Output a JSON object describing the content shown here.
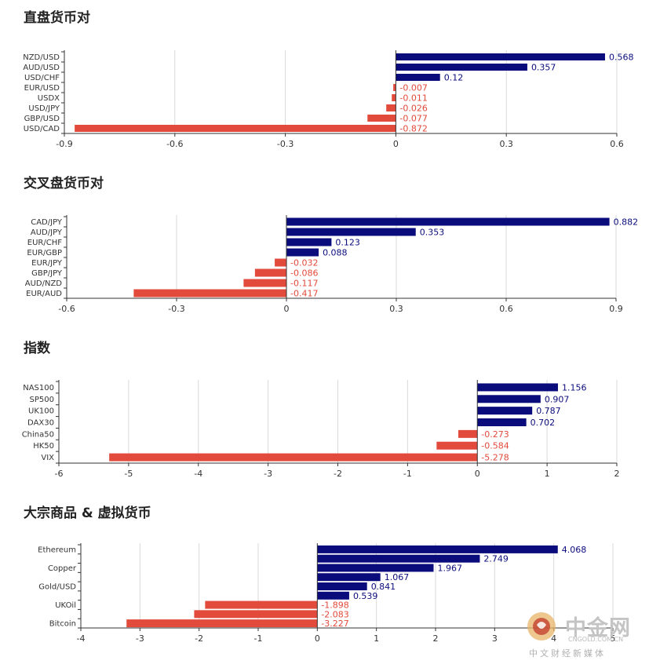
{
  "sections": [
    {
      "title": "直盘货币对"
    },
    {
      "title": "交叉盘货币对"
    },
    {
      "title": "指数"
    },
    {
      "title": "大宗商品 & 虚拟货币"
    }
  ],
  "colors": {
    "positive": "#0b0c7c",
    "negative": "#e24a3b",
    "grid": "#d9d9d9",
    "axis": "#333333"
  },
  "chart_data": [
    {
      "type": "bar",
      "orientation": "horizontal",
      "title": "直盘货币对",
      "categories": [
        "NZD/USD",
        "AUD/USD",
        "USD/CHF",
        "EUR/USD",
        "USDX",
        "USD/JPY",
        "GBP/USD",
        "USD/CAD"
      ],
      "values": [
        0.568,
        0.357,
        0.12,
        -0.007,
        -0.011,
        -0.026,
        -0.077,
        -0.872
      ],
      "value_labels": [
        "0.568",
        "0.357",
        "0.12",
        "-0.007",
        "-0.011",
        "-0.026",
        "-0.077",
        "-0.872"
      ],
      "xlim": [
        -0.9,
        0.6
      ],
      "xticks": [
        -0.9,
        -0.6,
        -0.3,
        0,
        0.3,
        0.6
      ],
      "xtick_labels": [
        "-0.9",
        "-0.6",
        "-0.3",
        "0",
        "0.3",
        "0.6"
      ],
      "grid": true
    },
    {
      "type": "bar",
      "orientation": "horizontal",
      "title": "交叉盘货币对",
      "categories": [
        "CAD/JPY",
        "AUD/JPY",
        "EUR/CHF",
        "EUR/GBP",
        "EUR/JPY",
        "GBP/JPY",
        "AUD/NZD",
        "EUR/AUD"
      ],
      "values": [
        0.882,
        0.353,
        0.123,
        0.088,
        -0.032,
        -0.086,
        -0.117,
        -0.417
      ],
      "value_labels": [
        "0.882",
        "0.353",
        "0.123",
        "0.088",
        "-0.032",
        "-0.086",
        "-0.117",
        "-0.417"
      ],
      "xlim": [
        -0.6,
        0.9
      ],
      "xticks": [
        -0.6,
        -0.3,
        0,
        0.3,
        0.6,
        0.9
      ],
      "xtick_labels": [
        "-0.6",
        "-0.3",
        "0",
        "0.3",
        "0.6",
        "0.9"
      ],
      "grid": true
    },
    {
      "type": "bar",
      "orientation": "horizontal",
      "title": "指数",
      "categories": [
        "NAS100",
        "SP500",
        "UK100",
        "DAX30",
        "China50",
        "HK50",
        "VIX"
      ],
      "values": [
        1.156,
        0.907,
        0.787,
        0.702,
        -0.273,
        -0.584,
        -5.278
      ],
      "value_labels": [
        "1.156",
        "0.907",
        "0.787",
        "0.702",
        "-0.273",
        "-0.584",
        "-5.278"
      ],
      "xlim": [
        -6,
        2
      ],
      "xticks": [
        -6,
        -5,
        -4,
        -3,
        -2,
        -1,
        0,
        1,
        2
      ],
      "xtick_labels": [
        "-6",
        "-5",
        "-4",
        "-3",
        "-2",
        "-1",
        "0",
        "1",
        "2"
      ],
      "grid": true
    },
    {
      "type": "bar",
      "orientation": "horizontal",
      "title": "大宗商品 & 虚拟货币",
      "categories": [
        "Ethereum",
        "",
        "Copper",
        "",
        "Gold/USD",
        "",
        "UKOil",
        "",
        "Bitcoin"
      ],
      "values": [
        4.068,
        2.749,
        1.967,
        1.067,
        0.841,
        0.539,
        -1.898,
        -2.083,
        -3.227
      ],
      "value_labels": [
        "4.068",
        "2.749",
        "1.967",
        "1.067",
        "0.841",
        "0.539",
        "-1.898",
        "-2.083",
        "-3.227"
      ],
      "xlim": [
        -4,
        5
      ],
      "xticks": [
        -4,
        -3,
        -2,
        -1,
        0,
        1,
        2,
        3,
        4,
        5
      ],
      "xtick_labels": [
        "-4",
        "-3",
        "-2",
        "-1",
        "0",
        "1",
        "2",
        "3",
        "4",
        "5"
      ],
      "grid": true
    }
  ],
  "watermark": {
    "brand": "中金网",
    "url": "CNGOLD.COM.CN",
    "tagline": "中文财经新媒体"
  }
}
